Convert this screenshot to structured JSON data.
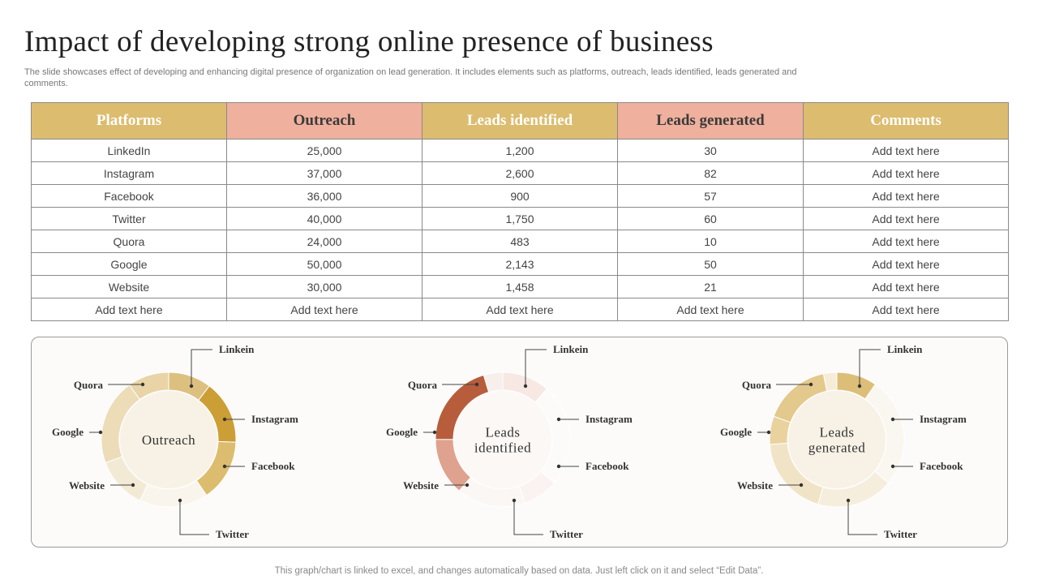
{
  "title": "Impact of developing strong online presence of business",
  "subtitle": "The slide showcases effect of developing and enhancing digital presence of organization on lead generation. It includes elements such as platforms, outreach, leads identified, leads generated and comments.",
  "table": {
    "headers": [
      "Platforms",
      "Outreach",
      "Leads identified",
      "Leads generated",
      "Comments"
    ],
    "rows": [
      [
        "LinkedIn",
        "25,000",
        "1,200",
        "30",
        "Add text here"
      ],
      [
        "Instagram",
        "37,000",
        "2,600",
        "82",
        "Add text here"
      ],
      [
        "Facebook",
        "36,000",
        "900",
        "57",
        "Add text here"
      ],
      [
        "Twitter",
        "40,000",
        "1,750",
        "60",
        "Add text here"
      ],
      [
        "Quora",
        "24,000",
        "483",
        "10",
        "Add text here"
      ],
      [
        "Google",
        "50,000",
        "2,143",
        "50",
        "Add text here"
      ],
      [
        "Website",
        "30,000",
        "1,458",
        "21",
        "Add text here"
      ],
      [
        "Add text here",
        "Add text here",
        "Add text here",
        "Add text here",
        "Add text here"
      ]
    ]
  },
  "chart_data": [
    {
      "type": "pie",
      "center_label": [
        "Outreach"
      ],
      "categories": [
        "Linkein",
        "Instagram",
        "Facebook",
        "Twitter",
        "Website",
        "Google",
        "Quora"
      ],
      "values": [
        25000,
        37000,
        36000,
        40000,
        30000,
        50000,
        24000
      ],
      "colors": [
        "#dcc080",
        "#cc9e36",
        "#dcbc6e",
        "#faf5ec",
        "#f3ead5",
        "#ecdcb8",
        "#e8d4a6"
      ]
    },
    {
      "type": "pie",
      "center_label": [
        "Leads",
        "identified"
      ],
      "categories": [
        "Linkein",
        "Instagram",
        "Facebook",
        "Twitter",
        "Website",
        "Google",
        "Quora"
      ],
      "values": [
        1200,
        2600,
        900,
        1750,
        1458,
        2143,
        483
      ],
      "colors": [
        "#f7e8e3",
        "#fdfafa",
        "#faf3f1",
        "#fbf7f5",
        "#dea28e",
        "#b75d3c",
        "#f7efec"
      ]
    },
    {
      "type": "pie",
      "center_label": [
        "Leads",
        "generated"
      ],
      "categories": [
        "Linkein",
        "Instagram",
        "Facebook",
        "Twitter",
        "Website",
        "Google",
        "Quora"
      ],
      "values": [
        30,
        82,
        57,
        60,
        21,
        50,
        10
      ],
      "colors": [
        "#dcbe78",
        "#faf7f0",
        "#f6eedc",
        "#f1e4c6",
        "#e9d29e",
        "#e3c98c",
        "#f6edd8"
      ]
    }
  ],
  "footer": "This graph/chart is linked to excel,  and changes automatically based on data. Just left click on it and select “Edit Data”."
}
